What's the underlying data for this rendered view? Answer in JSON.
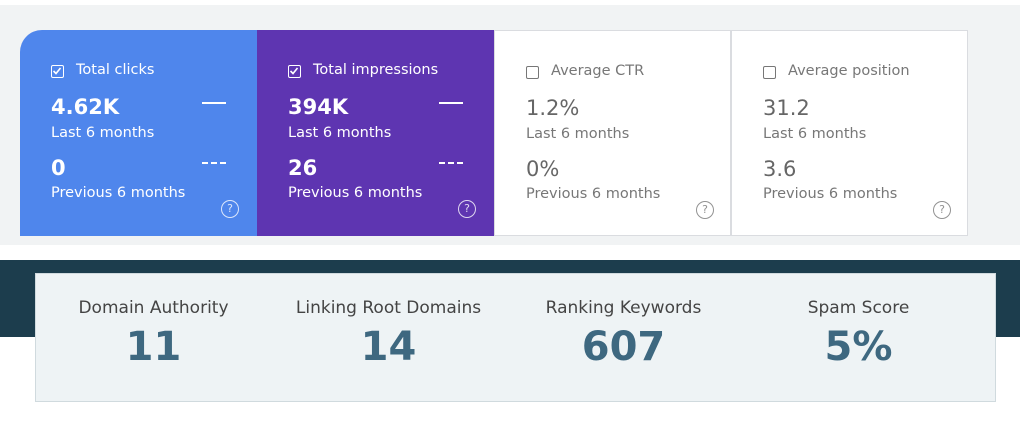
{
  "search_console": {
    "cards": [
      {
        "label": "Total clicks",
        "checked": true,
        "color": "#4f86ec",
        "value": "4.62K",
        "period": "Last 6 months",
        "previous_value": "0",
        "previous_period": "Previous 6 months"
      },
      {
        "label": "Total impressions",
        "checked": true,
        "color": "#5e35b1",
        "value": "394K",
        "period": "Last 6 months",
        "previous_value": "26",
        "previous_period": "Previous 6 months"
      },
      {
        "label": "Average CTR",
        "checked": false,
        "color": "#ffffff",
        "value": "1.2%",
        "period": "Last 6 months",
        "previous_value": "0%",
        "previous_period": "Previous 6 months"
      },
      {
        "label": "Average position",
        "checked": false,
        "color": "#ffffff",
        "value": "31.2",
        "period": "Last 6 months",
        "previous_value": "3.6",
        "previous_period": "Previous 6 months"
      }
    ]
  },
  "moz_metrics": {
    "items": [
      {
        "label": "Domain Authority",
        "value": "11"
      },
      {
        "label": "Linking Root Domains",
        "value": "14"
      },
      {
        "label": "Ranking Keywords",
        "value": "607"
      },
      {
        "label": "Spam Score",
        "value": "5%"
      }
    ]
  }
}
